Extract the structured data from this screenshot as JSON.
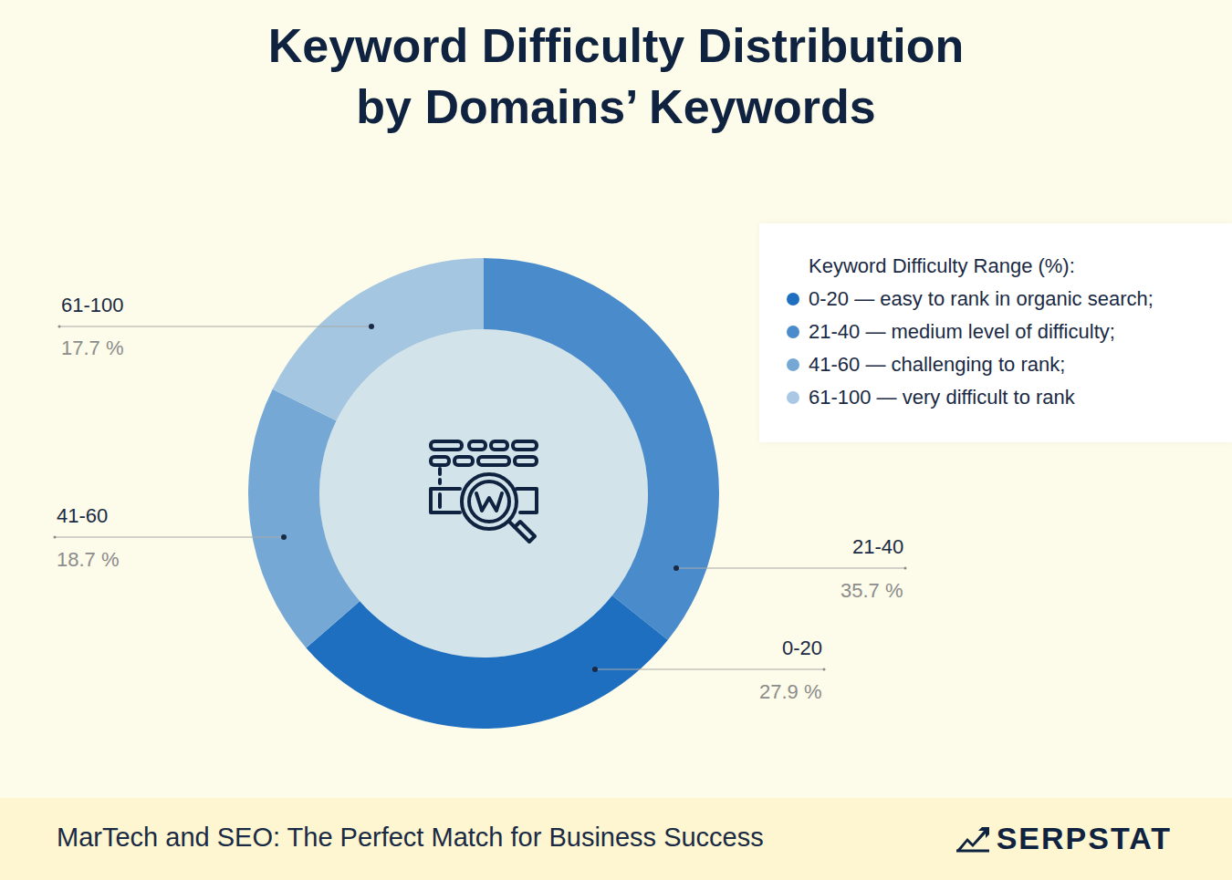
{
  "chart_data": {
    "type": "pie",
    "title": [
      "Keyword Difficulty Distribution",
      "by Domains’ Keywords"
    ],
    "categories": [
      "21-40",
      "0-20",
      "41-60",
      "61-100"
    ],
    "values": [
      35.7,
      27.9,
      18.7,
      17.7
    ],
    "value_labels": [
      "35.7 %",
      "27.9 %",
      "18.7 %",
      "17.7 %"
    ],
    "colors": [
      "#4a8ccb",
      "#1f6fc1",
      "#76a8d6",
      "#a5c6e0"
    ],
    "data_labels": true,
    "legend": "top right",
    "legend_title": "Keyword Difficulty Range (%):",
    "legend_entries": [
      {
        "text": "0-20 — easy to rank in organic search;",
        "color": "#1f6fc1"
      },
      {
        "text": "21-40 — medium level of difficulty;",
        "color": "#4a8ccb"
      },
      {
        "text": "41-60 — challenging to rank;",
        "color": "#76a8d6"
      },
      {
        "text": "61-100 — very difficult to rank",
        "color": "#a8c8e6"
      }
    ],
    "footer": "MarTech and SEO: The Perfect Match for Business Success",
    "brand": "SERPSTAT"
  }
}
